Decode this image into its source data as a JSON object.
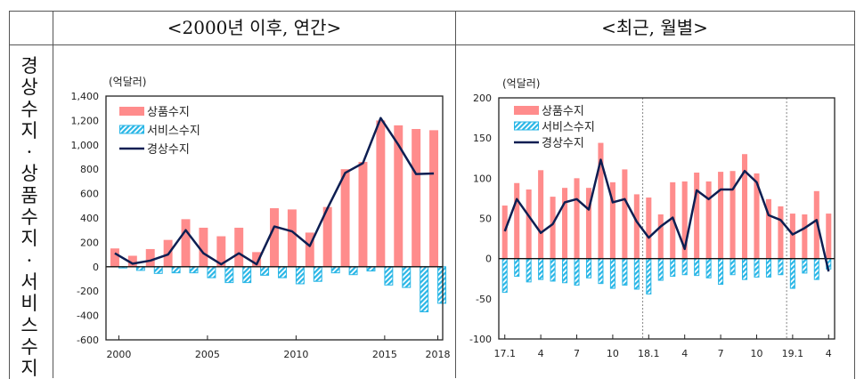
{
  "header": {
    "left_title": "<2000년 이후, 연간>",
    "right_title": "<최근, 월별>"
  },
  "side_label": [
    "경",
    "상",
    "수",
    "지",
    "·",
    "상",
    "품",
    "수",
    "지",
    "·",
    "서",
    "비",
    "스",
    "수",
    "지"
  ],
  "colors": {
    "goods": "#FF8C8C",
    "services": "#29B6E6",
    "current": "#0D1E52"
  },
  "chart_data": [
    {
      "type": "bar",
      "title": "<2000년 이후, 연간>",
      "unit_label": "(억달러)",
      "ylim": [
        -600,
        1400
      ],
      "yticks": [
        -600,
        -400,
        -200,
        0,
        200,
        400,
        600,
        800,
        1000,
        1200,
        1400
      ],
      "ytick_labels": [
        "-600",
        "-400",
        "-200",
        "0",
        "200",
        "400",
        "600",
        "800",
        "1,000",
        "1,200",
        "1,400"
      ],
      "x": [
        2000,
        2001,
        2002,
        2003,
        2004,
        2005,
        2006,
        2007,
        2008,
        2009,
        2010,
        2011,
        2012,
        2013,
        2014,
        2015,
        2016,
        2017,
        2018
      ],
      "xtick_labels": [
        "2000",
        "2005",
        "2010",
        "2015",
        "2018"
      ],
      "xtick_index": [
        0,
        5,
        10,
        15,
        18
      ],
      "legend": [
        "상품수지",
        "서비스수지",
        "경상수지"
      ],
      "legend_position": "top-left",
      "series": [
        {
          "name": "상품수지",
          "kind": "bar",
          "values": [
            150,
            90,
            145,
            220,
            390,
            320,
            250,
            320,
            120,
            480,
            470,
            280,
            490,
            800,
            860,
            1200,
            1160,
            1130,
            1120
          ]
        },
        {
          "name": "서비스수지",
          "kind": "bar",
          "values": [
            -10,
            -30,
            -55,
            -50,
            -50,
            -90,
            -130,
            -130,
            -70,
            -90,
            -140,
            -120,
            -50,
            -65,
            -35,
            -150,
            -170,
            -370,
            -300
          ]
        },
        {
          "name": "경상수지",
          "kind": "line",
          "values": [
            110,
            25,
            50,
            100,
            300,
            110,
            20,
            110,
            20,
            330,
            290,
            170,
            480,
            770,
            850,
            1220,
            1000,
            760,
            765
          ]
        }
      ]
    },
    {
      "type": "bar",
      "title": "<최근, 월별>",
      "unit_label": "(억달러)",
      "ylim": [
        -100,
        200
      ],
      "yticks": [
        -100,
        -50,
        0,
        50,
        100,
        150,
        200
      ],
      "ytick_labels": [
        "-100",
        "-50",
        "0",
        "50",
        "100",
        "150",
        "200"
      ],
      "x": [
        "17.1",
        "17.2",
        "17.3",
        "17.4",
        "17.5",
        "17.6",
        "17.7",
        "17.8",
        "17.9",
        "17.10",
        "17.11",
        "17.12",
        "18.1",
        "18.2",
        "18.3",
        "18.4",
        "18.5",
        "18.6",
        "18.7",
        "18.8",
        "18.9",
        "18.10",
        "18.11",
        "18.12",
        "19.1",
        "19.2",
        "19.3",
        "19.4"
      ],
      "xtick_labels": [
        "17.1",
        "4",
        "7",
        "10",
        "18.1",
        "4",
        "7",
        "10",
        "19.1",
        "4"
      ],
      "xtick_index": [
        0,
        3,
        6,
        9,
        12,
        15,
        18,
        21,
        24,
        27
      ],
      "year_dividers": [
        "18.1",
        "19.1"
      ],
      "legend": [
        "상품수지",
        "서비스수지",
        "경상수지"
      ],
      "legend_position": "top-left",
      "series": [
        {
          "name": "상품수지",
          "kind": "bar",
          "values": [
            66,
            94,
            86,
            110,
            77,
            88,
            100,
            88,
            144,
            95,
            111,
            80,
            76,
            55,
            95,
            96,
            107,
            96,
            108,
            109,
            130,
            106,
            74,
            65,
            56,
            55,
            84,
            56
          ]
        },
        {
          "name": "서비스수지",
          "kind": "bar",
          "values": [
            -42,
            -22,
            -29,
            -26,
            -28,
            -30,
            -33,
            -24,
            -31,
            -37,
            -33,
            -38,
            -44,
            -27,
            -22,
            -20,
            -21,
            -24,
            -32,
            -20,
            -26,
            -23,
            -23,
            -20,
            -37,
            -18,
            -26,
            -13
          ]
        },
        {
          "name": "경상수지",
          "kind": "line",
          "values": [
            34,
            74,
            53,
            32,
            43,
            70,
            74,
            61,
            123,
            70,
            74,
            46,
            26,
            40,
            51,
            12,
            85,
            74,
            86,
            86,
            109,
            95,
            54,
            48,
            30,
            38,
            48,
            -16
          ]
        }
      ]
    }
  ]
}
